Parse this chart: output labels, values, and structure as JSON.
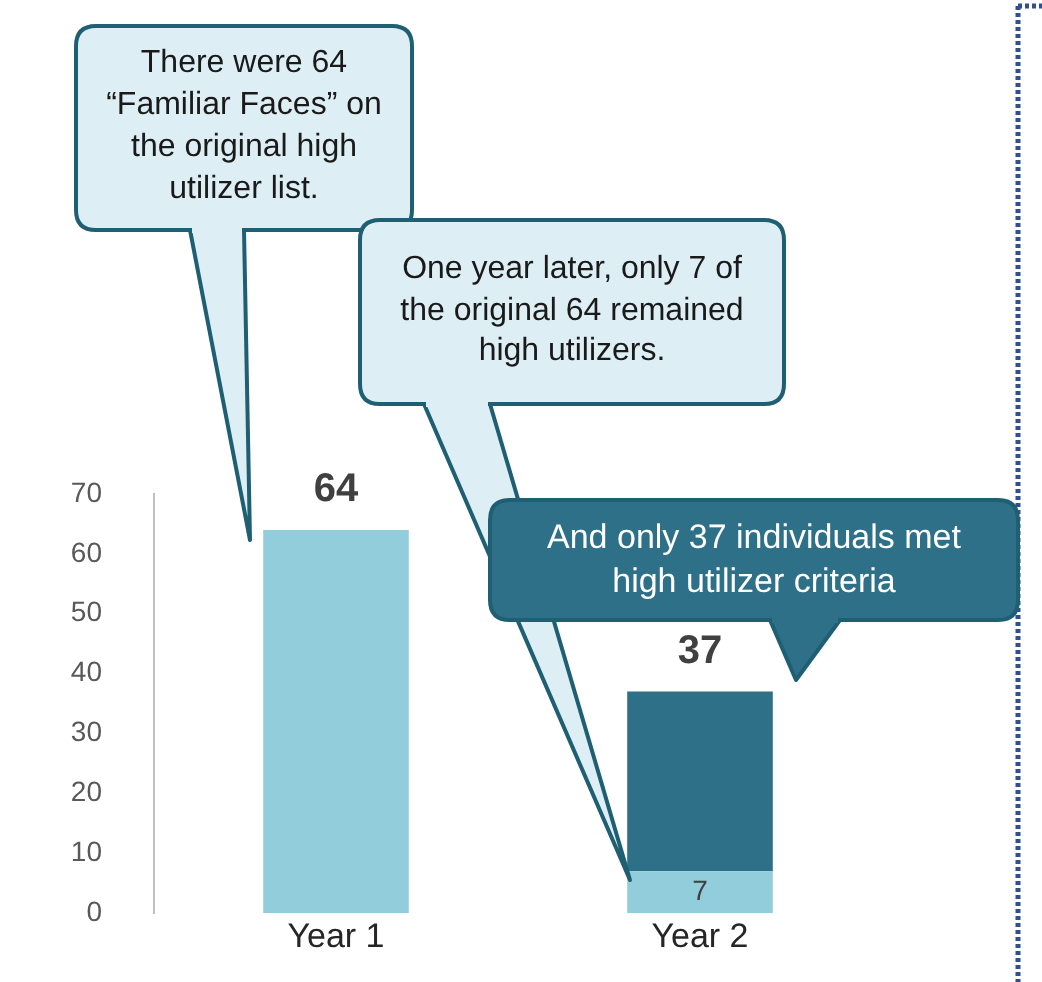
{
  "chart_data": {
    "type": "bar",
    "categories": [
      "Year 1",
      "Year 2"
    ],
    "stacked": true,
    "series": [
      {
        "color": "#92cddc",
        "values": [
          64,
          7
        ],
        "value_labels": [
          null,
          "7"
        ]
      },
      {
        "color": "#2e7087",
        "values": [
          null,
          30
        ]
      }
    ],
    "totals": [
      "64",
      "37"
    ],
    "ylim": [
      0,
      70
    ],
    "yticks": [
      0,
      10,
      20,
      30,
      40,
      50,
      60,
      70
    ],
    "grid": false,
    "legend": false,
    "annotations": [
      "There were 64 “Familiar Faces” on the original high utilizer list.",
      "One year later, only 7 of the original 64 remained high utilizers.",
      "And only 37 individuals met high utilizer criteria"
    ]
  }
}
